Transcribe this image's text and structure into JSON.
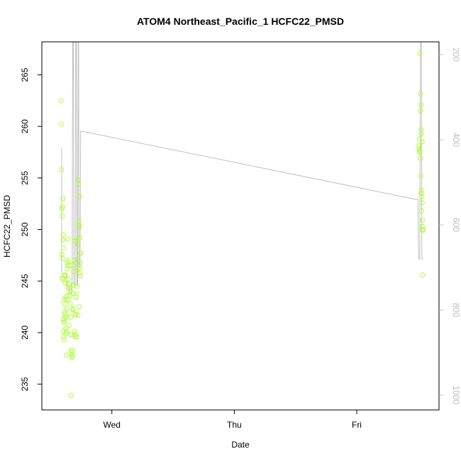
{
  "chart_data": {
    "type": "scatter",
    "title": "ATOM4 Northeast_Pacific_1 HCFC22_PMSD",
    "xlabel": "Date",
    "ylabel": "HCFC22_PMSD",
    "x_units": "days from Tuesday 00:00",
    "xlim": [
      1.428,
      4.672
    ],
    "ylim": [
      232.5,
      268.2
    ],
    "x_ticks": [
      {
        "value": 2,
        "label": "Wed"
      },
      {
        "value": 3,
        "label": "Thu"
      },
      {
        "value": 4,
        "label": "Fri"
      }
    ],
    "y_ticks": [
      {
        "value": 235,
        "label": "235"
      },
      {
        "value": 240,
        "label": "240"
      },
      {
        "value": 245,
        "label": "245"
      },
      {
        "value": 250,
        "label": "250"
      },
      {
        "value": 255,
        "label": "255"
      },
      {
        "value": 260,
        "label": "260"
      },
      {
        "value": 265,
        "label": "265"
      }
    ],
    "y2_label": "",
    "y2lim": [
      1035,
      170
    ],
    "y2_ticks": [
      {
        "value": 200,
        "label": "200"
      },
      {
        "value": 400,
        "label": "400"
      },
      {
        "value": 600,
        "label": "600"
      },
      {
        "value": 800,
        "label": "800"
      },
      {
        "value": 1000,
        "label": "1000"
      }
    ],
    "series": [
      {
        "color": "#adff2f",
        "marker": "open-circle",
        "axis": "left",
        "points": [
          [
            1.584,
            262.5
          ],
          [
            1.586,
            260.2
          ],
          [
            1.588,
            255.8
          ],
          [
            1.591,
            252.0
          ],
          [
            1.594,
            251.3
          ],
          [
            1.598,
            252.2
          ],
          [
            1.6,
            253.0
          ],
          [
            1.592,
            247.6
          ],
          [
            1.596,
            247.2
          ],
          [
            1.6,
            249.0
          ],
          [
            1.603,
            249.5
          ],
          [
            1.606,
            248.2
          ],
          [
            1.596,
            245.3
          ],
          [
            1.6,
            245.2
          ],
          [
            1.609,
            243.2
          ],
          [
            1.612,
            242.8
          ],
          [
            1.615,
            245.5
          ],
          [
            1.618,
            245.6
          ],
          [
            1.621,
            244.8
          ],
          [
            1.624,
            243.5
          ],
          [
            1.627,
            243.2
          ],
          [
            1.63,
            242.3
          ],
          [
            1.632,
            241.5
          ],
          [
            1.634,
            246.8
          ],
          [
            1.636,
            246.2
          ],
          [
            1.639,
            246.5
          ],
          [
            1.642,
            244.4
          ],
          [
            1.645,
            243.2
          ],
          [
            1.605,
            241.3
          ],
          [
            1.608,
            241.0
          ],
          [
            1.611,
            241.0
          ],
          [
            1.604,
            240.1
          ],
          [
            1.607,
            239.6
          ],
          [
            1.61,
            239.3
          ],
          [
            1.614,
            242.0
          ],
          [
            1.617,
            241.5
          ],
          [
            1.62,
            241.8
          ],
          [
            1.623,
            240.4
          ],
          [
            1.626,
            239.9
          ],
          [
            1.629,
            237.8
          ],
          [
            1.632,
            240.1
          ],
          [
            1.638,
            249.1
          ],
          [
            1.641,
            247.0
          ],
          [
            1.645,
            245.2
          ],
          [
            1.648,
            244.7
          ],
          [
            1.651,
            244.3
          ],
          [
            1.654,
            243.9
          ],
          [
            1.657,
            243.6
          ],
          [
            1.66,
            242.8
          ],
          [
            1.663,
            241.5
          ],
          [
            1.666,
            239.8
          ],
          [
            1.669,
            238.3
          ],
          [
            1.672,
            237.9
          ],
          [
            1.674,
            237.6
          ],
          [
            1.676,
            237.7
          ],
          [
            1.678,
            238.2
          ],
          [
            1.68,
            242.3
          ],
          [
            1.682,
            242.2
          ],
          [
            1.684,
            243.8
          ],
          [
            1.686,
            244.6
          ],
          [
            1.688,
            245.9
          ],
          [
            1.69,
            246.5
          ],
          [
            1.692,
            247.0
          ],
          [
            1.694,
            248.9
          ],
          [
            1.696,
            240.1
          ],
          [
            1.698,
            239.8
          ],
          [
            1.7,
            239.6
          ],
          [
            1.702,
            241.7
          ],
          [
            1.705,
            241.8
          ],
          [
            1.708,
            243.4
          ],
          [
            1.711,
            243.8
          ],
          [
            1.714,
            244.5
          ],
          [
            1.717,
            246.0
          ],
          [
            1.72,
            247.1
          ],
          [
            1.723,
            248.5
          ],
          [
            1.726,
            254.8
          ],
          [
            1.728,
            254.4
          ],
          [
            1.73,
            250.8
          ],
          [
            1.732,
            250.4
          ],
          [
            1.734,
            250.2
          ],
          [
            1.736,
            253.2
          ],
          [
            1.739,
            249.2
          ],
          [
            1.742,
            247.7
          ],
          [
            1.745,
            247.7
          ],
          [
            1.741,
            246.8
          ],
          [
            1.738,
            246.3
          ],
          [
            1.74,
            245.8
          ],
          [
            1.743,
            245.5
          ],
          [
            1.733,
            242.5
          ],
          [
            1.724,
            241.7
          ],
          [
            1.712,
            239.6
          ],
          [
            1.667,
            233.9
          ],
          [
            1.65,
            240.7
          ],
          [
            1.66,
            246.5
          ],
          [
            1.715,
            249.0
          ],
          [
            4.515,
            267.1
          ],
          [
            4.52,
            263.2
          ],
          [
            4.526,
            262.1
          ],
          [
            4.521,
            261.5
          ],
          [
            4.512,
            258.8
          ],
          [
            4.508,
            258.1
          ],
          [
            4.51,
            257.8
          ],
          [
            4.513,
            257.5
          ],
          [
            4.516,
            257.6
          ],
          [
            4.519,
            256.9
          ],
          [
            4.528,
            259.7
          ],
          [
            4.531,
            259.3
          ],
          [
            4.534,
            258.5
          ],
          [
            4.524,
            255.2
          ],
          [
            4.526,
            253.5
          ],
          [
            4.529,
            253.8
          ],
          [
            4.532,
            253.2
          ],
          [
            4.535,
            252.6
          ],
          [
            4.53,
            251.8
          ],
          [
            4.538,
            250.9
          ],
          [
            4.536,
            250.3
          ],
          [
            4.54,
            250.0
          ],
          [
            4.542,
            249.9
          ],
          [
            4.537,
            245.6
          ]
        ]
      },
      {
        "color": "#c0c0c0",
        "style": "line",
        "axis": "right",
        "points": [
          [
            1.584,
            421
          ],
          [
            1.59,
            421
          ],
          [
            1.59,
            715
          ],
          [
            1.6,
            715
          ],
          [
            1.61,
            715
          ],
          [
            1.63,
            715
          ],
          [
            1.63,
            742
          ],
          [
            1.65,
            742
          ],
          [
            1.65,
            760
          ],
          [
            1.675,
            760
          ],
          [
            1.68,
            170
          ],
          [
            1.685,
            170
          ],
          [
            1.69,
            742
          ],
          [
            1.7,
            742
          ],
          [
            1.705,
            170
          ],
          [
            1.71,
            170
          ],
          [
            1.715,
            742
          ],
          [
            1.72,
            742
          ],
          [
            1.725,
            170
          ],
          [
            1.728,
            170
          ],
          [
            1.732,
            700
          ],
          [
            1.74,
            700
          ],
          [
            1.745,
            380
          ],
          [
            1.755,
            380
          ],
          [
            4.48,
            540
          ],
          [
            4.5,
            540
          ],
          [
            4.505,
            680
          ],
          [
            4.515,
            680
          ],
          [
            4.52,
            170
          ],
          [
            4.528,
            170
          ],
          [
            4.532,
            680
          ],
          [
            4.545,
            680
          ]
        ]
      }
    ]
  }
}
